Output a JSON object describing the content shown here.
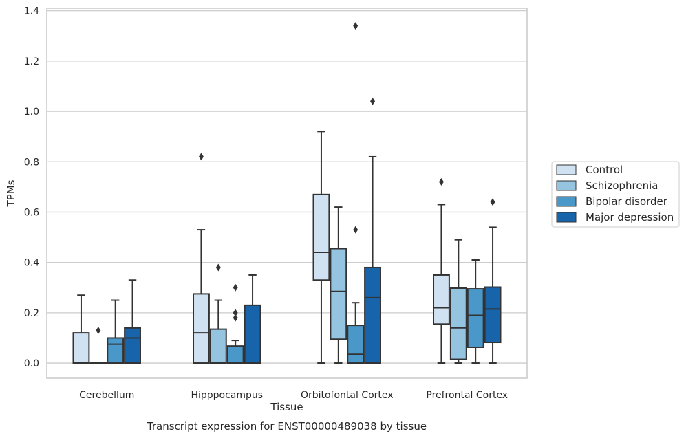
{
  "chart_data": {
    "type": "box",
    "title": "",
    "caption": "Transcript expression for ENST00000489038 by tissue",
    "xlabel": "Tissue",
    "ylabel": "TPMs",
    "ylim": [
      -0.06,
      1.41
    ],
    "yticks": [
      0.0,
      0.2,
      0.4,
      0.6,
      0.8,
      1.0,
      1.2,
      1.4
    ],
    "ytick_labels": [
      "0.0",
      "0.2",
      "0.4",
      "0.6",
      "0.8",
      "1.0",
      "1.2",
      "1.4"
    ],
    "grid": "horizontal",
    "legend_position": "right",
    "categories": [
      "Cerebellum",
      "Hipppocampus",
      "Orbitofontal Cortex",
      "Prefrontal Cortex"
    ],
    "series": [
      {
        "name": "Control",
        "color": "#d0e1f2",
        "boxes": [
          {
            "whislo": 0.0,
            "q1": 0.0,
            "med": 0.0,
            "q3": 0.12,
            "whishi": 0.27,
            "fliers": []
          },
          {
            "whislo": 0.0,
            "q1": 0.0,
            "med": 0.12,
            "q3": 0.275,
            "whishi": 0.53,
            "fliers": [
              0.82
            ]
          },
          {
            "whislo": 0.0,
            "q1": 0.33,
            "med": 0.44,
            "q3": 0.67,
            "whishi": 0.92,
            "fliers": []
          },
          {
            "whislo": 0.0,
            "q1": 0.155,
            "med": 0.22,
            "q3": 0.35,
            "whishi": 0.63,
            "fliers": [
              0.72
            ]
          }
        ]
      },
      {
        "name": "Schizophrenia",
        "color": "#94c4df",
        "boxes": [
          {
            "whislo": 0.0,
            "q1": 0.0,
            "med": 0.0,
            "q3": 0.0,
            "whishi": 0.0,
            "fliers": [
              0.13
            ]
          },
          {
            "whislo": 0.0,
            "q1": 0.0,
            "med": 0.0,
            "q3": 0.135,
            "whishi": 0.25,
            "fliers": [
              0.38
            ]
          },
          {
            "whislo": 0.0,
            "q1": 0.095,
            "med": 0.285,
            "q3": 0.455,
            "whishi": 0.62,
            "fliers": []
          },
          {
            "whislo": 0.0,
            "q1": 0.015,
            "med": 0.14,
            "q3": 0.298,
            "whishi": 0.49,
            "fliers": []
          }
        ]
      },
      {
        "name": "Bipolar disorder",
        "color": "#4a98c9",
        "boxes": [
          {
            "whislo": 0.0,
            "q1": 0.0,
            "med": 0.075,
            "q3": 0.1,
            "whishi": 0.25,
            "fliers": []
          },
          {
            "whislo": 0.0,
            "q1": 0.0,
            "med": 0.0,
            "q3": 0.068,
            "whishi": 0.09,
            "fliers": [
              0.18,
              0.2,
              0.3
            ]
          },
          {
            "whislo": 0.0,
            "q1": 0.0,
            "med": 0.035,
            "q3": 0.15,
            "whishi": 0.24,
            "fliers": [
              0.53,
              1.34
            ]
          },
          {
            "whislo": 0.0,
            "q1": 0.063,
            "med": 0.19,
            "q3": 0.295,
            "whishi": 0.41,
            "fliers": []
          }
        ]
      },
      {
        "name": "Major depression",
        "color": "#1764ab",
        "boxes": [
          {
            "whislo": 0.0,
            "q1": 0.0,
            "med": 0.1,
            "q3": 0.14,
            "whishi": 0.33,
            "fliers": []
          },
          {
            "whislo": 0.0,
            "q1": 0.0,
            "med": 0.0,
            "q3": 0.23,
            "whishi": 0.35,
            "fliers": []
          },
          {
            "whislo": 0.0,
            "q1": 0.0,
            "med": 0.26,
            "q3": 0.38,
            "whishi": 0.82,
            "fliers": [
              1.04
            ]
          },
          {
            "whislo": 0.0,
            "q1": 0.082,
            "med": 0.215,
            "q3": 0.302,
            "whishi": 0.54,
            "fliers": [
              0.64
            ]
          }
        ]
      }
    ]
  }
}
